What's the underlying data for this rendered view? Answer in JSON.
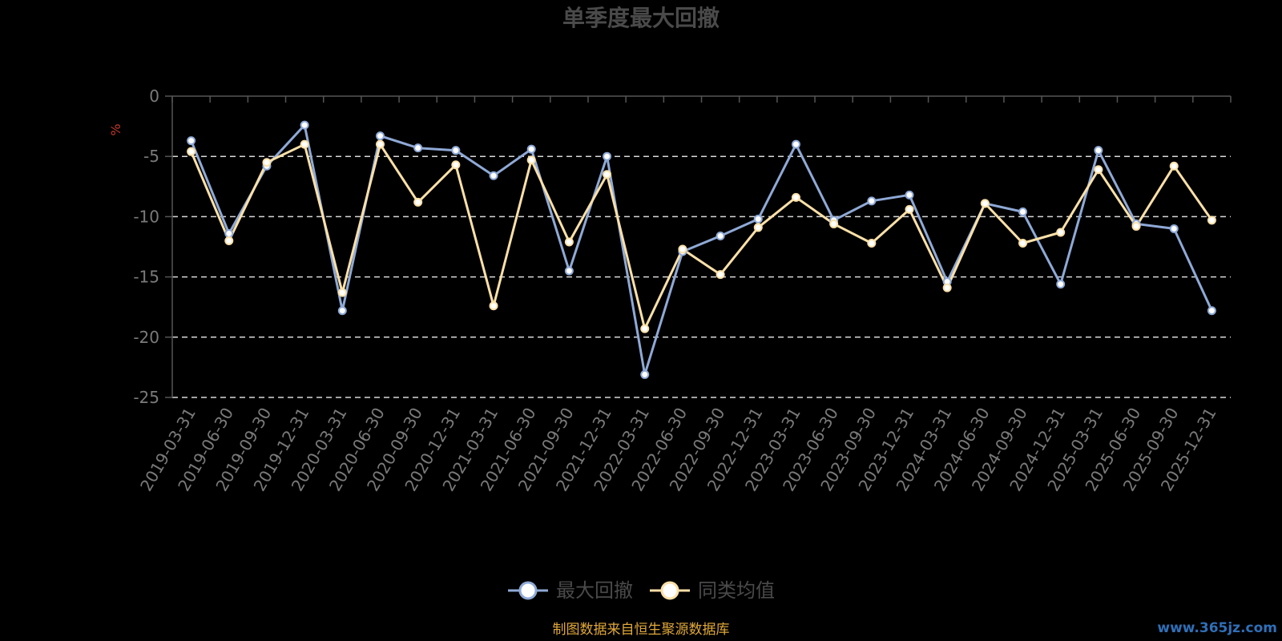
{
  "chart_data": {
    "type": "line",
    "title": "单季度最大回撤",
    "ylabel": "%",
    "ylim": [
      -25,
      0
    ],
    "yticks": [
      0,
      -5,
      -10,
      -15,
      -20,
      -25
    ],
    "grid": true,
    "legend_position": "bottom-center",
    "categories": [
      "2019-03-31",
      "2019-06-30",
      "2019-09-30",
      "2019-12-31",
      "2020-03-31",
      "2020-06-30",
      "2020-09-30",
      "2020-12-31",
      "2021-03-31",
      "2021-06-30",
      "2021-09-30",
      "2021-12-31",
      "2022-03-31",
      "2022-06-30",
      "2022-09-30",
      "2022-12-31",
      "2023-03-31",
      "2023-06-30",
      "2023-09-30",
      "2023-12-31",
      "2024-03-31",
      "2024-06-30",
      "2024-09-30",
      "2024-12-31",
      "2025-03-31",
      "2025-06-30",
      "2025-09-30",
      "2025-12-31"
    ],
    "series": [
      {
        "name": "最大回撤",
        "color": "#8fa9d6",
        "values": [
          -3.7,
          -11.4,
          -5.8,
          -2.4,
          -17.8,
          -3.3,
          -4.3,
          -4.5,
          -6.6,
          -4.4,
          -14.5,
          -5.0,
          -23.1,
          -12.9,
          -11.6,
          -10.2,
          -4.0,
          -10.3,
          -8.7,
          -8.2,
          -15.4,
          -8.9,
          -9.6,
          -15.6,
          -4.5,
          -10.6,
          -11.0,
          -17.8
        ]
      },
      {
        "name": "同类均值",
        "color": "#fbe0a8",
        "values": [
          -4.6,
          -12.0,
          -5.5,
          -4.0,
          -16.3,
          -4.0,
          -8.8,
          -5.7,
          -17.4,
          -5.3,
          -12.1,
          -6.5,
          -19.3,
          -12.7,
          -14.8,
          -10.9,
          -8.4,
          -10.6,
          -12.2,
          -9.4,
          -15.9,
          -8.9,
          -12.2,
          -11.3,
          -6.1,
          -10.8,
          -5.8,
          -10.3
        ]
      }
    ]
  },
  "footer": {
    "source": "制图数据来自恒生聚源数据库",
    "watermark": "www.365jz.com"
  }
}
